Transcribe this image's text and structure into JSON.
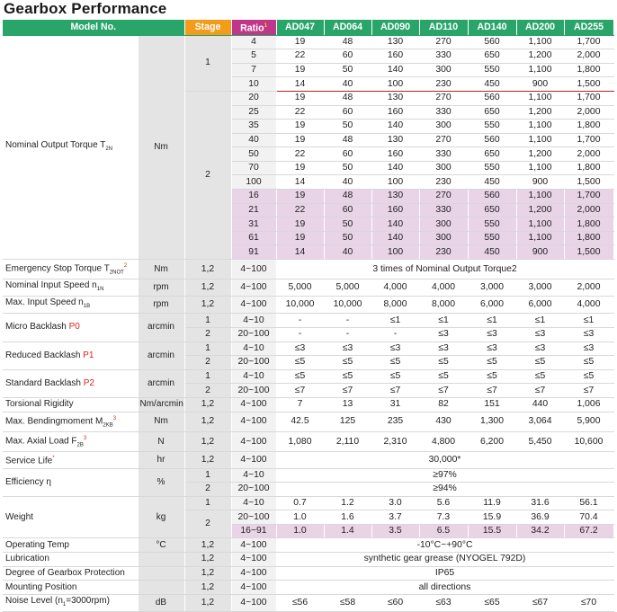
{
  "title": "Gearbox Performance",
  "header": {
    "model_no": "Model No.",
    "stage": "Stage",
    "ratio": "Ratio",
    "ratio_mark": "1",
    "models": [
      "AD047",
      "AD064",
      "AD090",
      "AD110",
      "AD140",
      "AD200",
      "AD255"
    ]
  },
  "torque": {
    "label": "Nominal Output Torque T",
    "label_sub": "2N",
    "unit": "Nm",
    "stage1": "1",
    "stage2": "2",
    "rows": [
      {
        "ratio": "4",
        "v": [
          "19",
          "48",
          "130",
          "270",
          "560",
          "1,100",
          "1,700"
        ]
      },
      {
        "ratio": "5",
        "v": [
          "22",
          "60",
          "160",
          "330",
          "650",
          "1,200",
          "2,000"
        ]
      },
      {
        "ratio": "7",
        "v": [
          "19",
          "50",
          "140",
          "300",
          "550",
          "1,100",
          "1,800"
        ]
      },
      {
        "ratio": "10",
        "v": [
          "14",
          "40",
          "100",
          "230",
          "450",
          "900",
          "1,500"
        ]
      },
      {
        "ratio": "20",
        "v": [
          "19",
          "48",
          "130",
          "270",
          "560",
          "1,100",
          "1,700"
        ]
      },
      {
        "ratio": "25",
        "v": [
          "22",
          "60",
          "160",
          "330",
          "650",
          "1,200",
          "2,000"
        ]
      },
      {
        "ratio": "35",
        "v": [
          "19",
          "50",
          "140",
          "300",
          "550",
          "1,100",
          "1,800"
        ]
      },
      {
        "ratio": "40",
        "v": [
          "19",
          "48",
          "130",
          "270",
          "560",
          "1,100",
          "1,700"
        ]
      },
      {
        "ratio": "50",
        "v": [
          "22",
          "60",
          "160",
          "330",
          "650",
          "1,200",
          "2,000"
        ]
      },
      {
        "ratio": "70",
        "v": [
          "19",
          "50",
          "140",
          "300",
          "550",
          "1,100",
          "1,800"
        ]
      },
      {
        "ratio": "100",
        "v": [
          "14",
          "40",
          "100",
          "230",
          "450",
          "900",
          "1,500"
        ]
      },
      {
        "ratio": "16",
        "v": [
          "19",
          "48",
          "130",
          "270",
          "560",
          "1,100",
          "1,700"
        ]
      },
      {
        "ratio": "21",
        "v": [
          "22",
          "60",
          "160",
          "330",
          "650",
          "1,200",
          "2,000"
        ]
      },
      {
        "ratio": "31",
        "v": [
          "19",
          "50",
          "140",
          "300",
          "550",
          "1,100",
          "1,800"
        ]
      },
      {
        "ratio": "61",
        "v": [
          "19",
          "50",
          "140",
          "300",
          "550",
          "1,100",
          "1,800"
        ]
      },
      {
        "ratio": "91",
        "v": [
          "14",
          "40",
          "100",
          "230",
          "450",
          "900",
          "1,500"
        ]
      }
    ]
  },
  "estop": {
    "label": "Emergency Stop Torque T",
    "label_sub": "2NOT",
    "mark": "2",
    "unit": "Nm",
    "stage": "1,2",
    "ratio": "4~100",
    "value": "3 times of Nominal Output Torque"
  },
  "nin": {
    "label": "Nominal Input Speed n",
    "label_sub": "1N",
    "unit": "rpm",
    "stage": "1,2",
    "ratio": "4~100",
    "v": [
      "5,000",
      "5,000",
      "4,000",
      "4,000",
      "3,000",
      "3,000",
      "2,000"
    ]
  },
  "maxin": {
    "label": "Max. Input Speed n",
    "label_sub": "1B",
    "unit": "rpm",
    "stage": "1,2",
    "ratio": "4~100",
    "v": [
      "10,000",
      "10,000",
      "8,000",
      "8,000",
      "6,000",
      "6,000",
      "4,000"
    ]
  },
  "micro": {
    "label": "Micro Backlash ",
    "code": "P0",
    "unit": "arcmin",
    "r1": {
      "stage": "1",
      "ratio": "4~10",
      "v": [
        "-",
        "-",
        "≤1",
        "≤1",
        "≤1",
        "≤1",
        "≤1"
      ]
    },
    "r2": {
      "stage": "2",
      "ratio": "20~100",
      "v": [
        "-",
        "-",
        "-",
        "≤3",
        "≤3",
        "≤3",
        "≤3"
      ]
    }
  },
  "reduced": {
    "label": "Reduced Backlash ",
    "code": "P1",
    "unit": "arcmin",
    "r1": {
      "stage": "1",
      "ratio": "4~10",
      "v": [
        "≤3",
        "≤3",
        "≤3",
        "≤3",
        "≤3",
        "≤3",
        "≤3"
      ]
    },
    "r2": {
      "stage": "2",
      "ratio": "20~100",
      "v": [
        "≤5",
        "≤5",
        "≤5",
        "≤5",
        "≤5",
        "≤5",
        "≤5"
      ]
    }
  },
  "standard": {
    "label": "Standard Backlash ",
    "code": "P2",
    "unit": "arcmin",
    "r1": {
      "stage": "1",
      "ratio": "4~10",
      "v": [
        "≤5",
        "≤5",
        "≤5",
        "≤5",
        "≤5",
        "≤5",
        "≤5"
      ]
    },
    "r2": {
      "stage": "2",
      "ratio": "20~100",
      "v": [
        "≤7",
        "≤7",
        "≤7",
        "≤7",
        "≤7",
        "≤7",
        "≤7"
      ]
    }
  },
  "torsional": {
    "label": "Torsional Rigidity",
    "unit": "Nm/arcmin",
    "stage": "1,2",
    "ratio": "4~100",
    "v": [
      "7",
      "13",
      "31",
      "82",
      "151",
      "440",
      "1,006"
    ]
  },
  "bending": {
    "label": "Max. Bendingmoment M",
    "label_sub": "2KB",
    "mark": "3",
    "unit": "Nm",
    "stage": "1,2",
    "ratio": "4~100",
    "v": [
      "42.5",
      "125",
      "235",
      "430",
      "1,300",
      "3,064",
      "5,900"
    ]
  },
  "axial": {
    "label": "Max. Axial Load F",
    "label_sub": "2B",
    "mark": "3",
    "unit": "N",
    "stage": "1,2",
    "ratio": "4~100",
    "v": [
      "1,080",
      "2,110",
      "2,310",
      "4,800",
      "6,200",
      "5,450",
      "10,600"
    ]
  },
  "life": {
    "label": "Service Life",
    "unit": "hr",
    "stage": "1,2",
    "ratio": "4~100",
    "value": "30,000",
    "mark": "*"
  },
  "eff": {
    "label": "Efficiency η",
    "unit": "%",
    "r1": {
      "stage": "1",
      "ratio": "4~10",
      "value": "≥97%"
    },
    "r2": {
      "stage": "2",
      "ratio": "20~100",
      "value": "≥94%"
    }
  },
  "weight": {
    "label": "Weight",
    "unit": "kg",
    "r1": {
      "stage": "1",
      "ratio": "4~10",
      "v": [
        "0.7",
        "1.2",
        "3.0",
        "5.6",
        "11.9",
        "31.6",
        "56.1"
      ]
    },
    "stage2": "2",
    "r2": {
      "ratio": "20~100",
      "v": [
        "1.0",
        "1.6",
        "3.7",
        "7.3",
        "15.9",
        "36.9",
        "70.4"
      ]
    },
    "r3": {
      "ratio": "16~91",
      "v": [
        "1.0",
        "1.4",
        "3.5",
        "6.5",
        "15.5",
        "34.2",
        "67.2"
      ]
    }
  },
  "temp": {
    "label": "Operating Temp",
    "unit": "°C",
    "stage": "1,2",
    "ratio": "4~100",
    "value": "-10°C~+90°C"
  },
  "lube": {
    "label": "Lubrication",
    "stage": "1,2",
    "ratio": "4~100",
    "value": "synthetic gear grease (NYOGEL 792D)"
  },
  "protect": {
    "label": "Degree of Gearbox Protection",
    "stage": "1,2",
    "ratio": "4~100",
    "value": "IP65"
  },
  "mount": {
    "label": "Mounting Position",
    "stage": "1,2",
    "ratio": "4~100",
    "value": "all directions"
  },
  "noise": {
    "label": "Noise Level (n",
    "label_sub": "1",
    "label_end": "=3000rpm)",
    "unit": "dB",
    "stage": "1,2",
    "ratio": "4~100",
    "v": [
      "≤56",
      "≤58",
      "≤60",
      "≤63",
      "≤65",
      "≤67",
      "≤70"
    ]
  }
}
